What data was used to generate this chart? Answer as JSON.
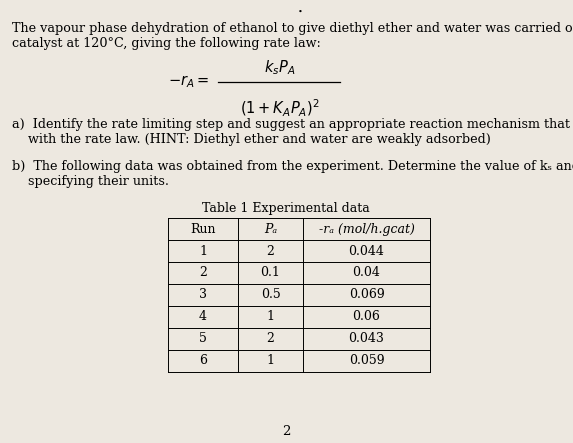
{
  "page_color": "#ede8e0",
  "title_line1": "The vapour phase dehydration of ethanol to give diethyl ether and water was carried out over a solid",
  "title_line2": "catalyst at 120°C, giving the following rate law:",
  "part_a_line1": "a)  Identify the rate limiting step and suggest an appropriate reaction mechanism that consistent",
  "part_a_line2": "    with the rate law. (HINT: Diethyl ether and water are weakly adsorbed)",
  "part_b_line1": "b)  The following data was obtained from the experiment. Determine the value of kₛ and Kₐ,",
  "part_b_line2": "    specifying their units.",
  "table_title": "Table 1 Experimental data",
  "col_headers": [
    "Run",
    "Pₐ",
    "-rₐ (mol/h.gcat)"
  ],
  "table_data": [
    [
      "1",
      "2",
      "0.044"
    ],
    [
      "2",
      "0.1",
      "0.04"
    ],
    [
      "3",
      "0.5",
      "0.069"
    ],
    [
      "4",
      "1",
      "0.06"
    ],
    [
      "5",
      "2",
      "0.043"
    ],
    [
      "6",
      "1",
      "0.059"
    ]
  ],
  "footer": "2",
  "bullet": "•",
  "fs_body": 9.2,
  "fs_eq": 10.5,
  "fs_table": 9.0,
  "fs_footer": 9.5
}
